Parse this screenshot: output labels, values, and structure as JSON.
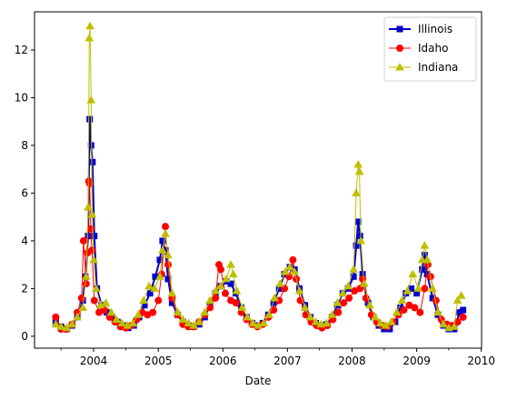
{
  "chart_data": {
    "type": "line",
    "title": "",
    "xlabel": "Date",
    "ylabel": "",
    "x_axis": {
      "type": "date",
      "range": [
        "2003-01-01",
        "2010-01-01"
      ],
      "ticks": [
        "2004",
        "2005",
        "2006",
        "2007",
        "2008",
        "2009",
        "2010"
      ],
      "minor_ticks": [
        "2003-07-01",
        "2004-07-01",
        "2005-07-01",
        "2006-07-01",
        "2007-07-01",
        "2008-07-01",
        "2009-07-01"
      ]
    },
    "y_axis": {
      "range": [
        -0.5,
        13.6
      ],
      "ticks": [
        0,
        2,
        4,
        6,
        8,
        10,
        12
      ]
    },
    "grid": false,
    "legend_position": "top-right",
    "series": [
      {
        "name": "Illinois",
        "color": "#0000cc",
        "marker": "square",
        "line_width": 2,
        "points": [
          [
            "2003-06-01",
            0.6
          ],
          [
            "2003-07-01",
            0.4
          ],
          [
            "2003-08-01",
            0.3
          ],
          [
            "2003-09-01",
            0.45
          ],
          [
            "2003-10-01",
            0.8
          ],
          [
            "2003-11-01",
            1.5
          ],
          [
            "2003-11-15",
            2.5
          ],
          [
            "2003-12-01",
            4.2
          ],
          [
            "2003-12-10",
            9.1
          ],
          [
            "2003-12-18",
            8.0
          ],
          [
            "2003-12-26",
            7.3
          ],
          [
            "2004-01-05",
            4.2
          ],
          [
            "2004-01-20",
            2.0
          ],
          [
            "2004-02-15",
            1.3
          ],
          [
            "2004-03-15",
            1.0
          ],
          [
            "2004-04-15",
            0.8
          ],
          [
            "2004-05-15",
            0.6
          ],
          [
            "2004-06-15",
            0.45
          ],
          [
            "2004-07-15",
            0.35
          ],
          [
            "2004-08-15",
            0.45
          ],
          [
            "2004-09-15",
            0.8
          ],
          [
            "2004-10-15",
            1.3
          ],
          [
            "2004-11-15",
            1.8
          ],
          [
            "2004-12-15",
            2.5
          ],
          [
            "2005-01-10",
            3.2
          ],
          [
            "2005-01-25",
            4.0
          ],
          [
            "2005-02-10",
            3.6
          ],
          [
            "2005-02-25",
            2.4
          ],
          [
            "2005-03-20",
            1.4
          ],
          [
            "2005-04-20",
            0.9
          ],
          [
            "2005-05-20",
            0.6
          ],
          [
            "2005-06-20",
            0.45
          ],
          [
            "2005-07-20",
            0.4
          ],
          [
            "2005-08-20",
            0.5
          ],
          [
            "2005-09-20",
            0.8
          ],
          [
            "2005-10-20",
            1.3
          ],
          [
            "2005-11-20",
            1.8
          ],
          [
            "2005-12-20",
            2.1
          ],
          [
            "2006-01-20",
            2.3
          ],
          [
            "2006-02-15",
            2.2
          ],
          [
            "2006-03-15",
            1.8
          ],
          [
            "2006-04-15",
            1.2
          ],
          [
            "2006-05-15",
            0.8
          ],
          [
            "2006-06-15",
            0.55
          ],
          [
            "2006-07-15",
            0.45
          ],
          [
            "2006-08-15",
            0.55
          ],
          [
            "2006-09-15",
            0.9
          ],
          [
            "2006-10-15",
            1.4
          ],
          [
            "2006-11-15",
            2.0
          ],
          [
            "2006-12-15",
            2.6
          ],
          [
            "2007-01-15",
            2.9
          ],
          [
            "2007-02-10",
            2.8
          ],
          [
            "2007-03-10",
            2.0
          ],
          [
            "2007-04-10",
            1.3
          ],
          [
            "2007-05-10",
            0.8
          ],
          [
            "2007-06-10",
            0.55
          ],
          [
            "2007-07-10",
            0.45
          ],
          [
            "2007-08-10",
            0.5
          ],
          [
            "2007-09-10",
            0.8
          ],
          [
            "2007-10-10",
            1.3
          ],
          [
            "2007-11-10",
            1.8
          ],
          [
            "2007-12-10",
            2.0
          ],
          [
            "2008-01-10",
            2.5
          ],
          [
            "2008-01-25",
            3.8
          ],
          [
            "2008-02-05",
            4.8
          ],
          [
            "2008-02-15",
            4.2
          ],
          [
            "2008-03-01",
            2.6
          ],
          [
            "2008-04-01",
            1.4
          ],
          [
            "2008-05-01",
            0.8
          ],
          [
            "2008-06-01",
            0.45
          ],
          [
            "2008-07-01",
            0.3
          ],
          [
            "2008-08-01",
            0.3
          ],
          [
            "2008-09-01",
            0.6
          ],
          [
            "2008-10-01",
            1.2
          ],
          [
            "2008-11-01",
            1.8
          ],
          [
            "2008-12-01",
            2.0
          ],
          [
            "2009-01-01",
            1.8
          ],
          [
            "2009-02-01",
            2.8
          ],
          [
            "2009-02-15",
            3.4
          ],
          [
            "2009-03-01",
            2.6
          ],
          [
            "2009-04-01",
            1.6
          ],
          [
            "2009-05-01",
            0.9
          ],
          [
            "2009-06-01",
            0.45
          ],
          [
            "2009-07-01",
            0.3
          ],
          [
            "2009-08-01",
            0.3
          ],
          [
            "2009-09-01",
            1.0
          ],
          [
            "2009-09-20",
            1.1
          ]
        ]
      },
      {
        "name": "Idaho",
        "color": "#ff0000",
        "marker": "circle",
        "line_width": 1,
        "points": [
          [
            "2003-06-01",
            0.8
          ],
          [
            "2003-07-01",
            0.3
          ],
          [
            "2003-08-01",
            0.3
          ],
          [
            "2003-09-01",
            0.5
          ],
          [
            "2003-10-01",
            1.0
          ],
          [
            "2003-10-25",
            1.6
          ],
          [
            "2003-11-05",
            4.0
          ],
          [
            "2003-11-20",
            2.2
          ],
          [
            "2003-11-28",
            3.5
          ],
          [
            "2003-12-05",
            6.5
          ],
          [
            "2003-12-10",
            6.4
          ],
          [
            "2003-12-16",
            4.5
          ],
          [
            "2003-12-22",
            3.6
          ],
          [
            "2004-01-05",
            1.5
          ],
          [
            "2004-02-01",
            1.0
          ],
          [
            "2004-03-01",
            1.1
          ],
          [
            "2004-04-01",
            0.8
          ],
          [
            "2004-05-01",
            0.6
          ],
          [
            "2004-06-01",
            0.4
          ],
          [
            "2004-07-01",
            0.35
          ],
          [
            "2004-08-01",
            0.45
          ],
          [
            "2004-09-01",
            0.7
          ],
          [
            "2004-10-01",
            1.0
          ],
          [
            "2004-11-01",
            0.9
          ],
          [
            "2004-12-01",
            1.0
          ],
          [
            "2005-01-01",
            1.5
          ],
          [
            "2005-01-20",
            2.6
          ],
          [
            "2005-02-10",
            4.6
          ],
          [
            "2005-02-25",
            3.0
          ],
          [
            "2005-03-20",
            1.6
          ],
          [
            "2005-04-20",
            0.9
          ],
          [
            "2005-05-20",
            0.5
          ],
          [
            "2005-06-20",
            0.4
          ],
          [
            "2005-07-20",
            0.4
          ],
          [
            "2005-08-20",
            0.6
          ],
          [
            "2005-09-20",
            0.9
          ],
          [
            "2005-10-20",
            1.2
          ],
          [
            "2005-11-20",
            1.6
          ],
          [
            "2005-12-10",
            3.0
          ],
          [
            "2005-12-20",
            2.8
          ],
          [
            "2006-01-15",
            1.8
          ],
          [
            "2006-02-15",
            1.5
          ],
          [
            "2006-03-15",
            1.4
          ],
          [
            "2006-04-15",
            1.0
          ],
          [
            "2006-05-15",
            0.7
          ],
          [
            "2006-06-15",
            0.5
          ],
          [
            "2006-07-15",
            0.4
          ],
          [
            "2006-08-15",
            0.5
          ],
          [
            "2006-09-15",
            0.8
          ],
          [
            "2006-10-15",
            1.1
          ],
          [
            "2006-11-15",
            1.5
          ],
          [
            "2006-12-15",
            2.0
          ],
          [
            "2007-01-10",
            2.5
          ],
          [
            "2007-02-01",
            3.2
          ],
          [
            "2007-02-20",
            2.4
          ],
          [
            "2007-03-15",
            1.5
          ],
          [
            "2007-04-15",
            0.9
          ],
          [
            "2007-05-15",
            0.6
          ],
          [
            "2007-06-15",
            0.45
          ],
          [
            "2007-07-15",
            0.35
          ],
          [
            "2007-08-15",
            0.45
          ],
          [
            "2007-09-15",
            0.7
          ],
          [
            "2007-10-15",
            1.0
          ],
          [
            "2007-11-15",
            1.4
          ],
          [
            "2007-12-15",
            1.6
          ],
          [
            "2008-01-15",
            1.9
          ],
          [
            "2008-02-15",
            2.0
          ],
          [
            "2008-03-01",
            2.4
          ],
          [
            "2008-03-20",
            1.6
          ],
          [
            "2008-04-20",
            0.9
          ],
          [
            "2008-05-20",
            0.6
          ],
          [
            "2008-06-20",
            0.45
          ],
          [
            "2008-07-20",
            0.4
          ],
          [
            "2008-08-20",
            0.6
          ],
          [
            "2008-09-20",
            0.9
          ],
          [
            "2008-10-20",
            1.1
          ],
          [
            "2008-11-20",
            1.3
          ],
          [
            "2008-12-20",
            1.2
          ],
          [
            "2009-01-20",
            1.0
          ],
          [
            "2009-02-15",
            2.0
          ],
          [
            "2009-03-05",
            3.0
          ],
          [
            "2009-03-20",
            2.5
          ],
          [
            "2009-04-20",
            1.5
          ],
          [
            "2009-05-20",
            0.7
          ],
          [
            "2009-06-20",
            0.5
          ],
          [
            "2009-07-20",
            0.45
          ],
          [
            "2009-08-20",
            0.6
          ],
          [
            "2009-09-20",
            0.8
          ]
        ]
      },
      {
        "name": "Indiana",
        "color": "#bfbf00",
        "marker": "triangle",
        "line_width": 1,
        "points": [
          [
            "2003-06-01",
            0.5
          ],
          [
            "2003-07-01",
            0.4
          ],
          [
            "2003-08-01",
            0.35
          ],
          [
            "2003-09-01",
            0.5
          ],
          [
            "2003-10-01",
            0.8
          ],
          [
            "2003-11-01",
            1.2
          ],
          [
            "2003-11-20",
            2.5
          ],
          [
            "2003-12-01",
            5.4
          ],
          [
            "2003-12-08",
            12.5
          ],
          [
            "2003-12-12",
            13.0
          ],
          [
            "2003-12-18",
            9.9
          ],
          [
            "2003-12-24",
            5.1
          ],
          [
            "2004-01-02",
            3.2
          ],
          [
            "2004-01-15",
            2.0
          ],
          [
            "2004-02-10",
            1.3
          ],
          [
            "2004-03-10",
            1.4
          ],
          [
            "2004-04-10",
            1.0
          ],
          [
            "2004-05-10",
            0.7
          ],
          [
            "2004-06-10",
            0.55
          ],
          [
            "2004-07-10",
            0.45
          ],
          [
            "2004-08-10",
            0.55
          ],
          [
            "2004-09-10",
            0.9
          ],
          [
            "2004-10-10",
            1.5
          ],
          [
            "2004-11-10",
            2.1
          ],
          [
            "2004-12-10",
            2.0
          ],
          [
            "2005-01-10",
            2.5
          ],
          [
            "2005-01-25",
            3.6
          ],
          [
            "2005-02-10",
            4.3
          ],
          [
            "2005-02-25",
            3.4
          ],
          [
            "2005-03-20",
            1.8
          ],
          [
            "2005-04-20",
            1.0
          ],
          [
            "2005-05-20",
            0.7
          ],
          [
            "2005-06-20",
            0.55
          ],
          [
            "2005-07-20",
            0.45
          ],
          [
            "2005-08-20",
            0.6
          ],
          [
            "2005-09-20",
            1.0
          ],
          [
            "2005-10-20",
            1.5
          ],
          [
            "2005-11-20",
            1.9
          ],
          [
            "2005-12-20",
            2.1
          ],
          [
            "2006-01-20",
            2.4
          ],
          [
            "2006-02-15",
            3.0
          ],
          [
            "2006-03-01",
            2.6
          ],
          [
            "2006-03-20",
            1.9
          ],
          [
            "2006-04-20",
            1.2
          ],
          [
            "2006-05-20",
            0.8
          ],
          [
            "2006-06-20",
            0.55
          ],
          [
            "2006-07-20",
            0.45
          ],
          [
            "2006-08-20",
            0.55
          ],
          [
            "2006-09-20",
            0.9
          ],
          [
            "2006-10-20",
            1.6
          ],
          [
            "2006-11-20",
            2.2
          ],
          [
            "2006-12-20",
            2.7
          ],
          [
            "2007-01-15",
            2.9
          ],
          [
            "2007-02-10",
            2.7
          ],
          [
            "2007-03-10",
            1.9
          ],
          [
            "2007-04-10",
            1.2
          ],
          [
            "2007-05-10",
            0.8
          ],
          [
            "2007-06-10",
            0.6
          ],
          [
            "2007-07-10",
            0.5
          ],
          [
            "2007-08-10",
            0.55
          ],
          [
            "2007-09-10",
            0.9
          ],
          [
            "2007-10-10",
            1.4
          ],
          [
            "2007-11-10",
            1.8
          ],
          [
            "2007-12-10",
            2.1
          ],
          [
            "2008-01-10",
            2.8
          ],
          [
            "2008-01-25",
            6.0
          ],
          [
            "2008-02-05",
            7.2
          ],
          [
            "2008-02-12",
            6.9
          ],
          [
            "2008-02-20",
            4.0
          ],
          [
            "2008-03-10",
            2.2
          ],
          [
            "2008-04-10",
            1.3
          ],
          [
            "2008-05-10",
            0.8
          ],
          [
            "2008-06-10",
            0.55
          ],
          [
            "2008-07-10",
            0.45
          ],
          [
            "2008-08-10",
            0.6
          ],
          [
            "2008-09-10",
            1.0
          ],
          [
            "2008-10-10",
            1.5
          ],
          [
            "2008-11-10",
            1.9
          ],
          [
            "2008-12-10",
            2.6
          ],
          [
            "2009-01-10",
            2.0
          ],
          [
            "2009-02-01",
            3.2
          ],
          [
            "2009-02-15",
            3.8
          ],
          [
            "2009-03-01",
            3.2
          ],
          [
            "2009-04-01",
            2.0
          ],
          [
            "2009-05-01",
            1.0
          ],
          [
            "2009-06-01",
            0.5
          ],
          [
            "2009-07-01",
            0.35
          ],
          [
            "2009-08-01",
            0.4
          ],
          [
            "2009-08-20",
            1.5
          ],
          [
            "2009-09-10",
            1.7
          ]
        ]
      }
    ]
  }
}
